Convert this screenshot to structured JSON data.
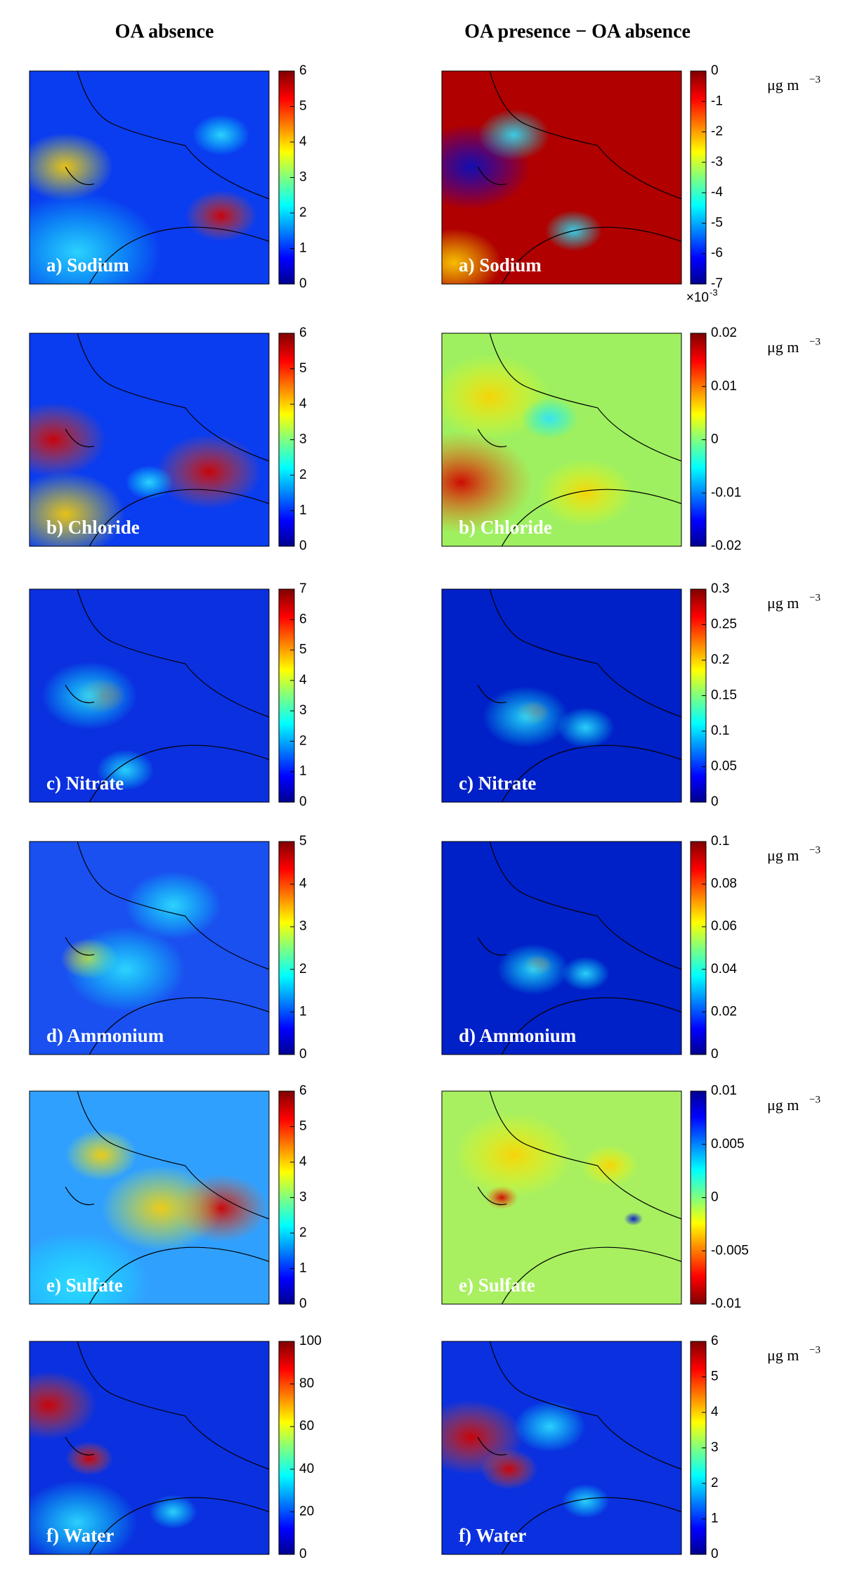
{
  "column_titles": [
    "OA absence",
    "OA presence − OA absence"
  ],
  "chart_data": [
    {
      "type": "map",
      "title": "a) Sodium",
      "colormap": "jet",
      "clim": [
        0,
        6
      ],
      "cticks": [
        0,
        1,
        2,
        3,
        4,
        5,
        6
      ]
    },
    {
      "type": "map",
      "title": "a) Sodium",
      "colormap": "jet",
      "clim": [
        -7,
        0
      ],
      "cticks": [
        -7,
        -6,
        -5,
        -4,
        -3,
        -2,
        -1,
        0
      ],
      "multiplier": "×10",
      "multiplier_exp": "-3",
      "unit": "μg m",
      "unit_exp": "−3"
    },
    {
      "type": "map",
      "title": "b) Chloride",
      "colormap": "jet",
      "clim": [
        0,
        6
      ],
      "cticks": [
        0,
        1,
        2,
        3,
        4,
        5,
        6
      ]
    },
    {
      "type": "map",
      "title": "b) Chloride",
      "colormap": "jet",
      "clim": [
        -0.02,
        0.02
      ],
      "cticks": [
        -0.02,
        -0.01,
        0,
        0.01,
        0.02
      ],
      "unit": "μg m",
      "unit_exp": "−3"
    },
    {
      "type": "map",
      "title": "c) Nitrate",
      "colormap": "jet",
      "clim": [
        0,
        7
      ],
      "cticks": [
        0,
        1,
        2,
        3,
        4,
        5,
        6,
        7
      ]
    },
    {
      "type": "map",
      "title": "c) Nitrate",
      "colormap": "jet",
      "clim": [
        0,
        0.3
      ],
      "cticks": [
        0,
        0.05,
        0.1,
        0.15,
        0.2,
        0.25,
        0.3
      ],
      "unit": "μg m",
      "unit_exp": "−3"
    },
    {
      "type": "map",
      "title": "d) Ammonium",
      "colormap": "jet",
      "clim": [
        0,
        5
      ],
      "cticks": [
        0,
        1,
        2,
        3,
        4,
        5
      ]
    },
    {
      "type": "map",
      "title": "d) Ammonium",
      "colormap": "jet",
      "clim": [
        0,
        0.1
      ],
      "cticks": [
        0,
        0.02,
        0.04,
        0.06,
        0.08,
        0.1
      ],
      "unit": "μg m",
      "unit_exp": "−3"
    },
    {
      "type": "map",
      "title": "e) Sulfate",
      "colormap": "jet",
      "clim": [
        0,
        6
      ],
      "cticks": [
        0,
        1,
        2,
        3,
        4,
        5,
        6
      ]
    },
    {
      "type": "map",
      "title": "e) Sulfate",
      "colormap": "jet_r",
      "clim": [
        -0.01,
        0.01
      ],
      "cticks": [
        -0.01,
        -0.005,
        0,
        0.005,
        0.01
      ],
      "unit": "μg m",
      "unit_exp": "−3"
    },
    {
      "type": "map",
      "title": "f) Water",
      "colormap": "jet",
      "clim": [
        0,
        100
      ],
      "cticks": [
        0,
        20,
        40,
        60,
        80,
        100
      ]
    },
    {
      "type": "map",
      "title": "f) Water",
      "colormap": "jet",
      "clim": [
        0,
        6
      ],
      "cticks": [
        0,
        1,
        2,
        3,
        4,
        5,
        6
      ],
      "unit": "μg m",
      "unit_exp": "−3"
    }
  ]
}
